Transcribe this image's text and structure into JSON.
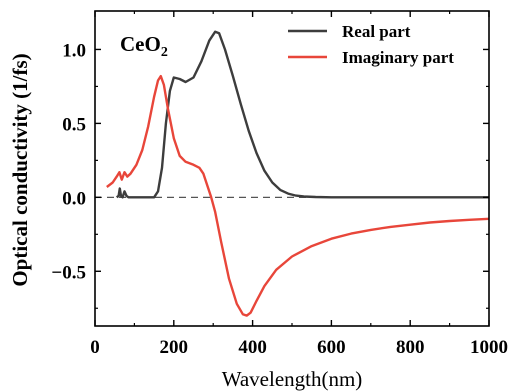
{
  "chart_data": {
    "type": "line",
    "annotation": {
      "main": "CeO",
      "sub": "2"
    },
    "xlabel": "Wavelength(nm)",
    "ylabel": "Optical conductivity (1/fs)",
    "xlim": [
      0,
      1000
    ],
    "ylim": [
      -0.87,
      1.26
    ],
    "x_ticks": [
      0,
      200,
      400,
      600,
      800,
      1000
    ],
    "x_tick_labels": [
      "0",
      "200",
      "400",
      "600",
      "800",
      "1000"
    ],
    "y_ticks": [
      -0.5,
      0.0,
      0.5,
      1.0
    ],
    "y_tick_labels": [
      "−0.5",
      "0.0",
      "0.5",
      "1.0"
    ],
    "reference_line": {
      "y": 0,
      "style": "dashed"
    },
    "legend_position": "top-right",
    "grid": false,
    "series": [
      {
        "name": "Real part",
        "color": "#3d3d3d",
        "points": [
          [
            55,
            0.0
          ],
          [
            60,
            0.01
          ],
          [
            63,
            0.06
          ],
          [
            66,
            0.01
          ],
          [
            70,
            0.0
          ],
          [
            75,
            0.04
          ],
          [
            80,
            0.01
          ],
          [
            85,
            0.0
          ],
          [
            150,
            0.0
          ],
          [
            160,
            0.04
          ],
          [
            170,
            0.2
          ],
          [
            180,
            0.5
          ],
          [
            190,
            0.72
          ],
          [
            200,
            0.81
          ],
          [
            215,
            0.8
          ],
          [
            230,
            0.78
          ],
          [
            250,
            0.81
          ],
          [
            270,
            0.92
          ],
          [
            290,
            1.06
          ],
          [
            305,
            1.12
          ],
          [
            315,
            1.11
          ],
          [
            330,
            1.0
          ],
          [
            350,
            0.82
          ],
          [
            370,
            0.63
          ],
          [
            390,
            0.45
          ],
          [
            410,
            0.3
          ],
          [
            430,
            0.18
          ],
          [
            450,
            0.1
          ],
          [
            470,
            0.05
          ],
          [
            490,
            0.025
          ],
          [
            510,
            0.012
          ],
          [
            530,
            0.006
          ],
          [
            560,
            0.002
          ],
          [
            600,
            0.0
          ],
          [
            700,
            0.0
          ],
          [
            800,
            0.0
          ],
          [
            900,
            0.0
          ],
          [
            1000,
            0.0
          ]
        ]
      },
      {
        "name": "Imaginary part",
        "color": "#e8463a",
        "points": [
          [
            30,
            0.07
          ],
          [
            45,
            0.1
          ],
          [
            55,
            0.14
          ],
          [
            62,
            0.17
          ],
          [
            68,
            0.12
          ],
          [
            75,
            0.17
          ],
          [
            82,
            0.14
          ],
          [
            90,
            0.16
          ],
          [
            105,
            0.22
          ],
          [
            120,
            0.32
          ],
          [
            135,
            0.48
          ],
          [
            150,
            0.68
          ],
          [
            160,
            0.79
          ],
          [
            167,
            0.82
          ],
          [
            175,
            0.76
          ],
          [
            185,
            0.6
          ],
          [
            200,
            0.4
          ],
          [
            215,
            0.28
          ],
          [
            230,
            0.24
          ],
          [
            250,
            0.22
          ],
          [
            265,
            0.2
          ],
          [
            275,
            0.16
          ],
          [
            285,
            0.08
          ],
          [
            295,
            0.0
          ],
          [
            305,
            -0.1
          ],
          [
            320,
            -0.3
          ],
          [
            340,
            -0.55
          ],
          [
            360,
            -0.72
          ],
          [
            375,
            -0.79
          ],
          [
            385,
            -0.8
          ],
          [
            395,
            -0.78
          ],
          [
            410,
            -0.7
          ],
          [
            430,
            -0.6
          ],
          [
            460,
            -0.49
          ],
          [
            500,
            -0.4
          ],
          [
            550,
            -0.33
          ],
          [
            600,
            -0.28
          ],
          [
            650,
            -0.245
          ],
          [
            700,
            -0.22
          ],
          [
            750,
            -0.2
          ],
          [
            800,
            -0.185
          ],
          [
            850,
            -0.17
          ],
          [
            900,
            -0.16
          ],
          [
            950,
            -0.152
          ],
          [
            1000,
            -0.145
          ]
        ]
      }
    ]
  }
}
